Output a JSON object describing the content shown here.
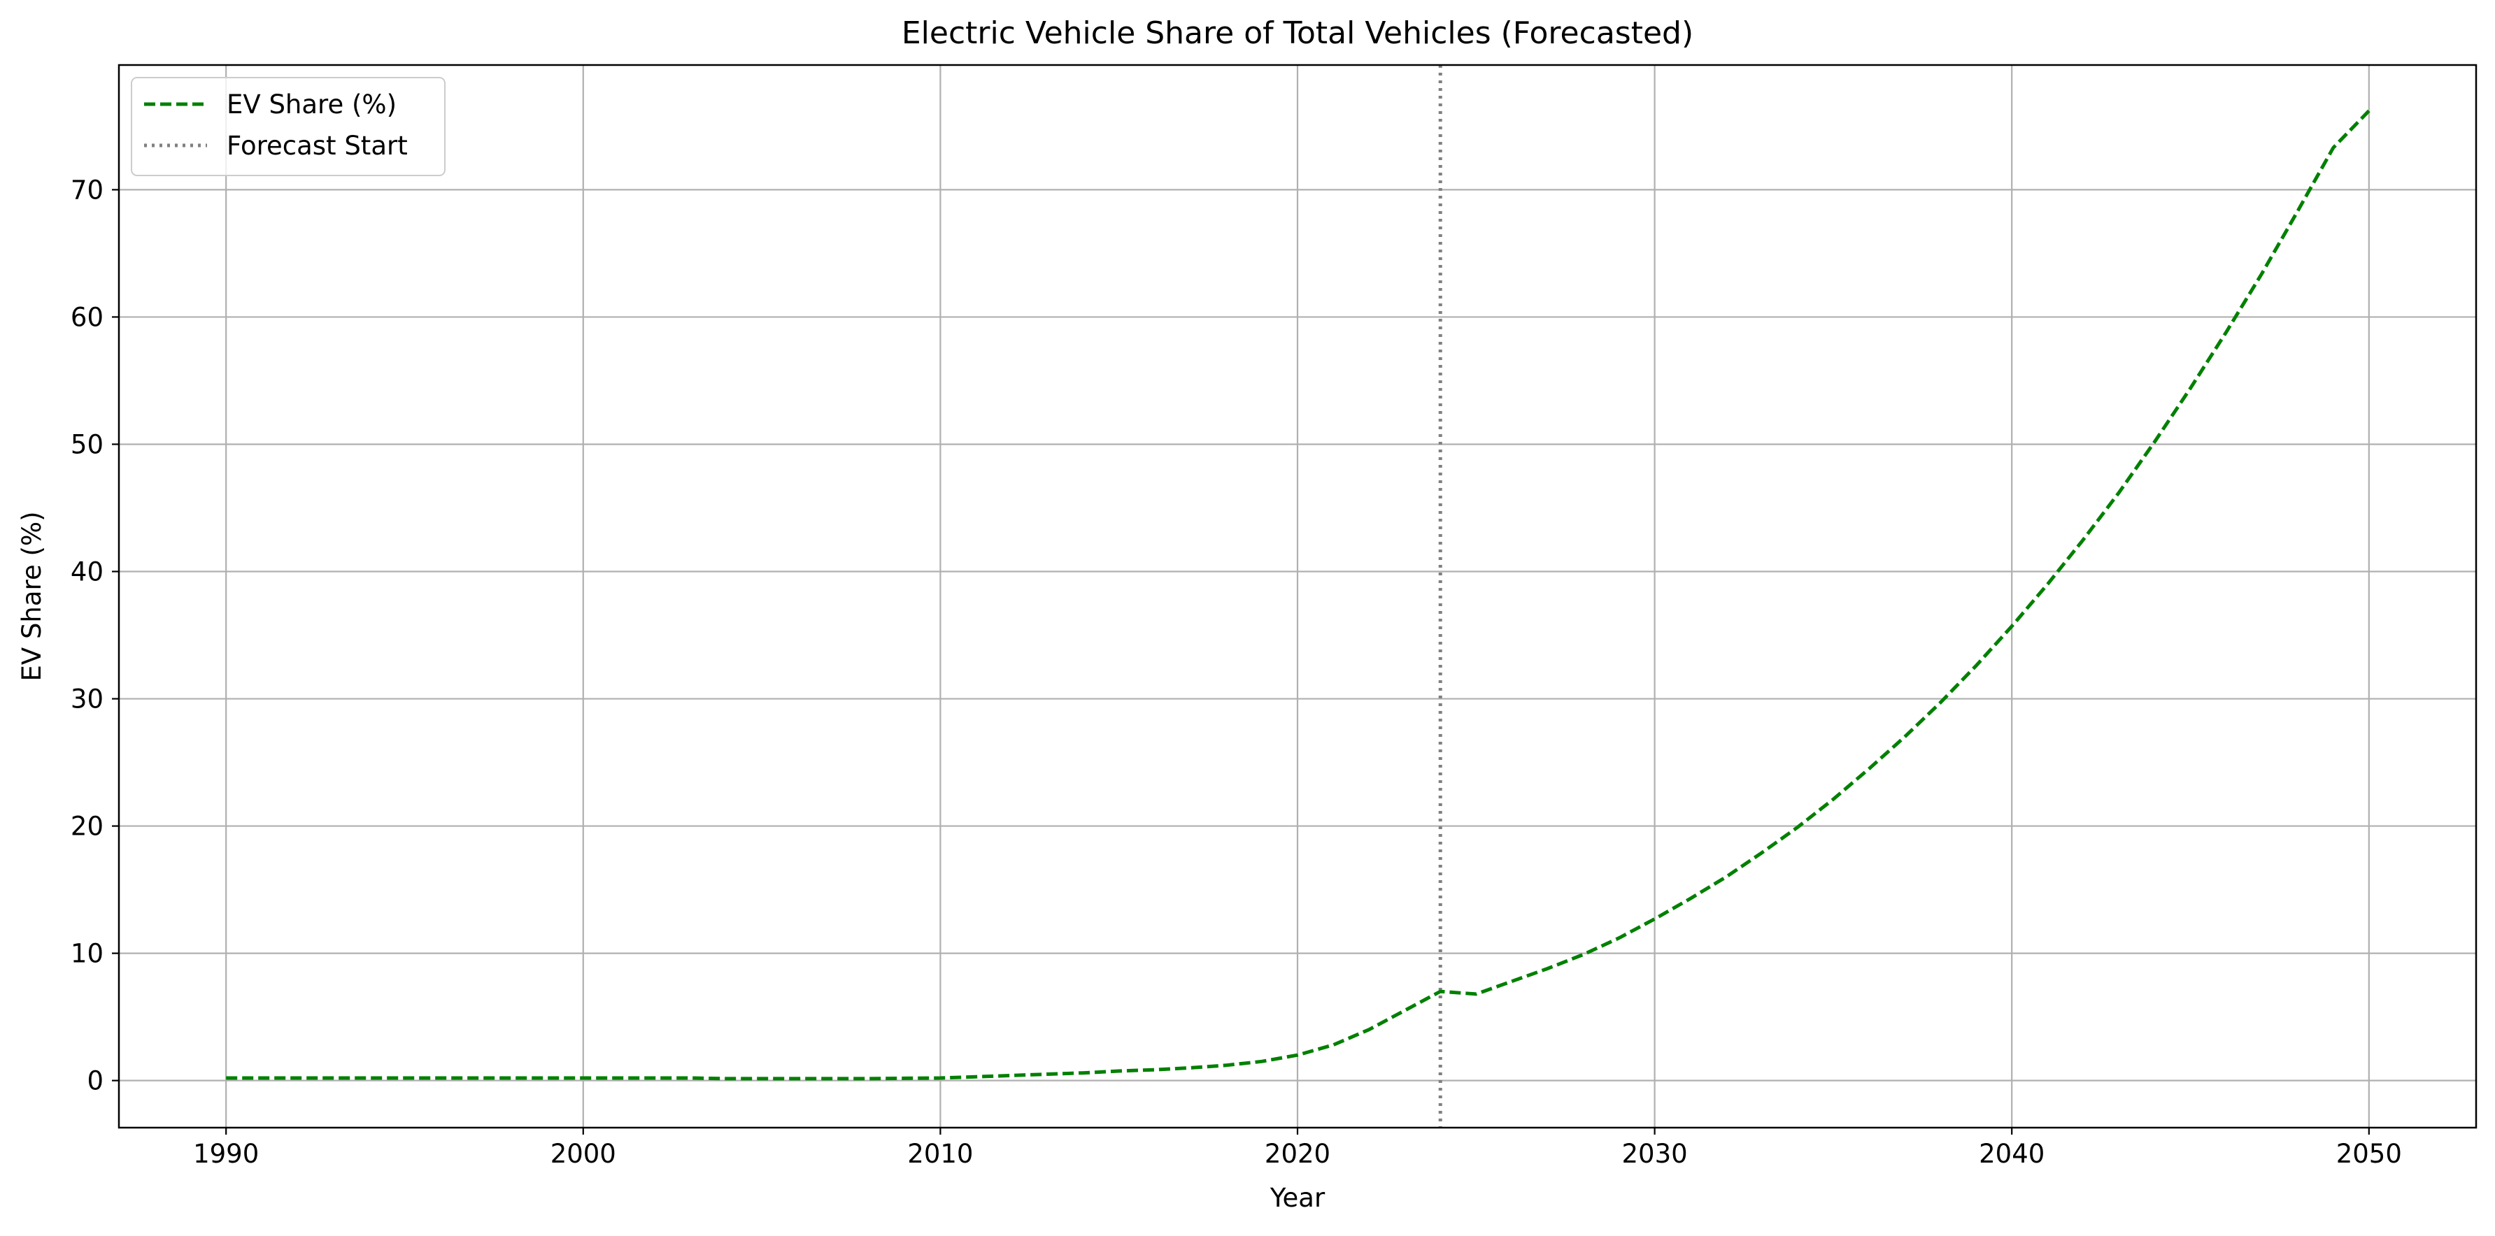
{
  "chart_data": {
    "type": "line",
    "title": "Electric Vehicle Share of Total Vehicles (Forecasted)",
    "xlabel": "Year",
    "ylabel": "EV Share (%)",
    "xlim": [
      1987,
      2053
    ],
    "ylim": [
      -3.7,
      79.8
    ],
    "xticks": [
      1990,
      2000,
      2010,
      2020,
      2030,
      2040,
      2050
    ],
    "yticks": [
      0,
      10,
      20,
      30,
      40,
      50,
      60,
      70
    ],
    "grid": true,
    "legend_position": "upper-left",
    "series": [
      {
        "name": "EV Share (%)",
        "color": "#008000",
        "line_style": "dashed",
        "x": [
          1990,
          1991,
          1992,
          1993,
          1994,
          1995,
          1996,
          1997,
          1998,
          1999,
          2000,
          2001,
          2002,
          2003,
          2004,
          2005,
          2006,
          2007,
          2008,
          2009,
          2010,
          2011,
          2012,
          2013,
          2014,
          2015,
          2016,
          2017,
          2018,
          2019,
          2020,
          2021,
          2022,
          2023,
          2024,
          2025,
          2026,
          2027,
          2028,
          2029,
          2030,
          2031,
          2032,
          2033,
          2034,
          2035,
          2036,
          2037,
          2038,
          2039,
          2040,
          2041,
          2042,
          2043,
          2044,
          2045,
          2046,
          2047,
          2048,
          2049,
          2050
        ],
        "y": [
          0.2,
          0.2,
          0.2,
          0.2,
          0.2,
          0.2,
          0.2,
          0.2,
          0.2,
          0.2,
          0.2,
          0.2,
          0.2,
          0.2,
          0.15,
          0.15,
          0.15,
          0.15,
          0.15,
          0.18,
          0.2,
          0.3,
          0.4,
          0.5,
          0.6,
          0.75,
          0.85,
          1.0,
          1.2,
          1.5,
          2.0,
          2.8,
          4.0,
          5.5,
          7.0,
          6.8,
          7.8,
          8.8,
          9.9,
          11.2,
          12.7,
          14.3,
          16.0,
          17.9,
          19.9,
          22.1,
          24.5,
          27.0,
          29.7,
          32.6,
          35.7,
          39.0,
          42.5,
          46.2,
          50.2,
          54.4,
          58.8,
          63.4,
          68.3,
          73.3,
          76.2
        ]
      }
    ],
    "reference_lines": [
      {
        "name": "Forecast Start",
        "x": 2024,
        "color": "#808080",
        "line_style": "dotted"
      }
    ]
  }
}
